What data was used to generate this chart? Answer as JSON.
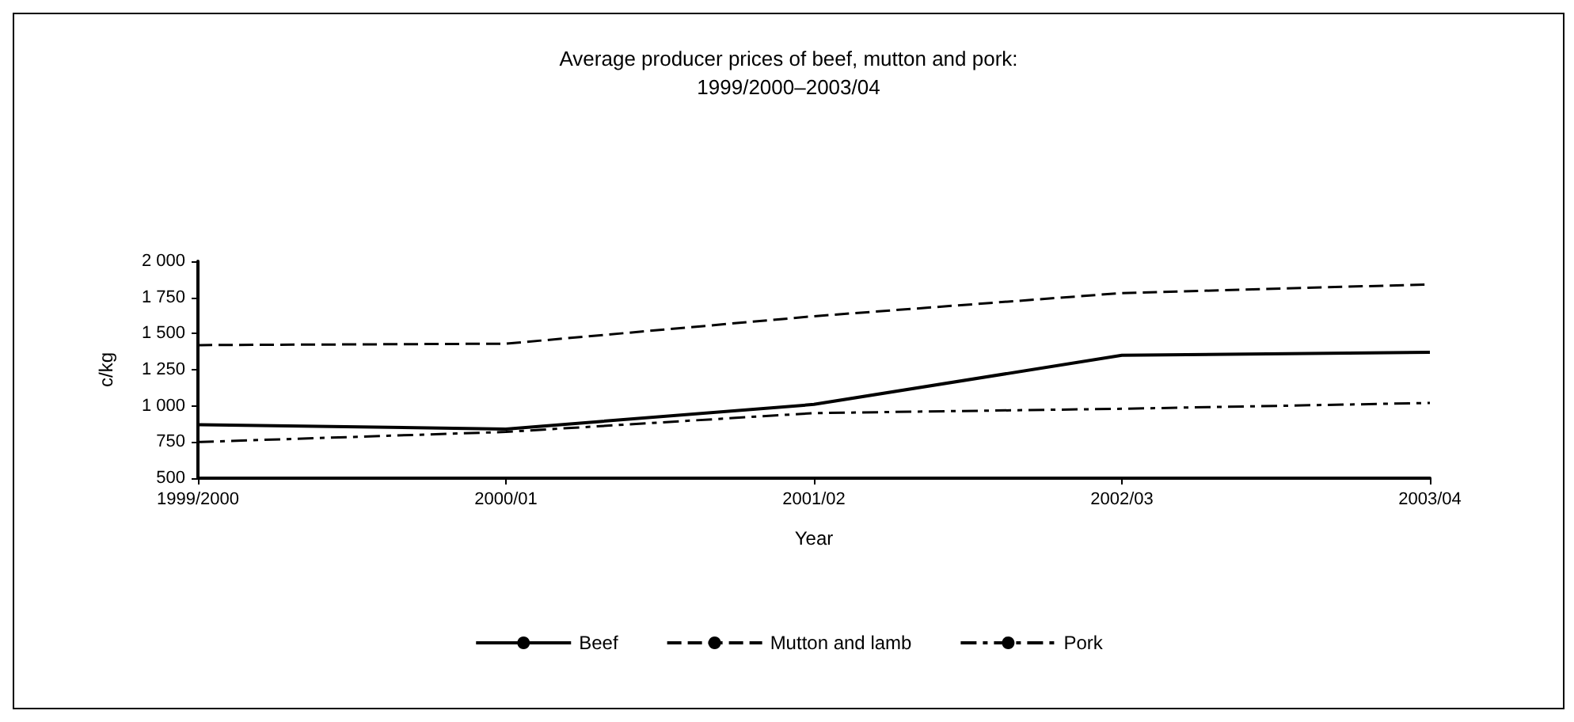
{
  "chart_data": {
    "type": "line",
    "title": "Average producer prices of beef, mutton and pork:\n1999/2000–2003/04",
    "xlabel": "Year",
    "ylabel": "c/kg",
    "categories": [
      "1999/2000",
      "2000/01",
      "2001/02",
      "2002/03",
      "2003/04"
    ],
    "series": [
      {
        "name": "Beef",
        "color": "#000000",
        "line_style": "solid",
        "values": [
          870,
          840,
          1010,
          1350,
          1370
        ]
      },
      {
        "name": "Mutton and lamb",
        "color": "#000000",
        "line_style": "dashed",
        "values": [
          1420,
          1430,
          1620,
          1780,
          1840
        ]
      },
      {
        "name": "Pork",
        "color": "#000000",
        "line_style": "dashdot",
        "values": [
          750,
          820,
          950,
          980,
          1020
        ]
      }
    ],
    "ylim": [
      500,
      2000
    ],
    "yticks": [
      500,
      750,
      {
        "value": 1000,
        "label": "1 000"
      },
      {
        "value": 1250,
        "label": "1 250"
      },
      {
        "value": 1500,
        "label": "1 500"
      },
      {
        "value": 1750,
        "label": "1 750"
      },
      {
        "value": 2000,
        "label": "2 000"
      }
    ],
    "grid": false,
    "legend": "bottom",
    "marker": "none"
  }
}
